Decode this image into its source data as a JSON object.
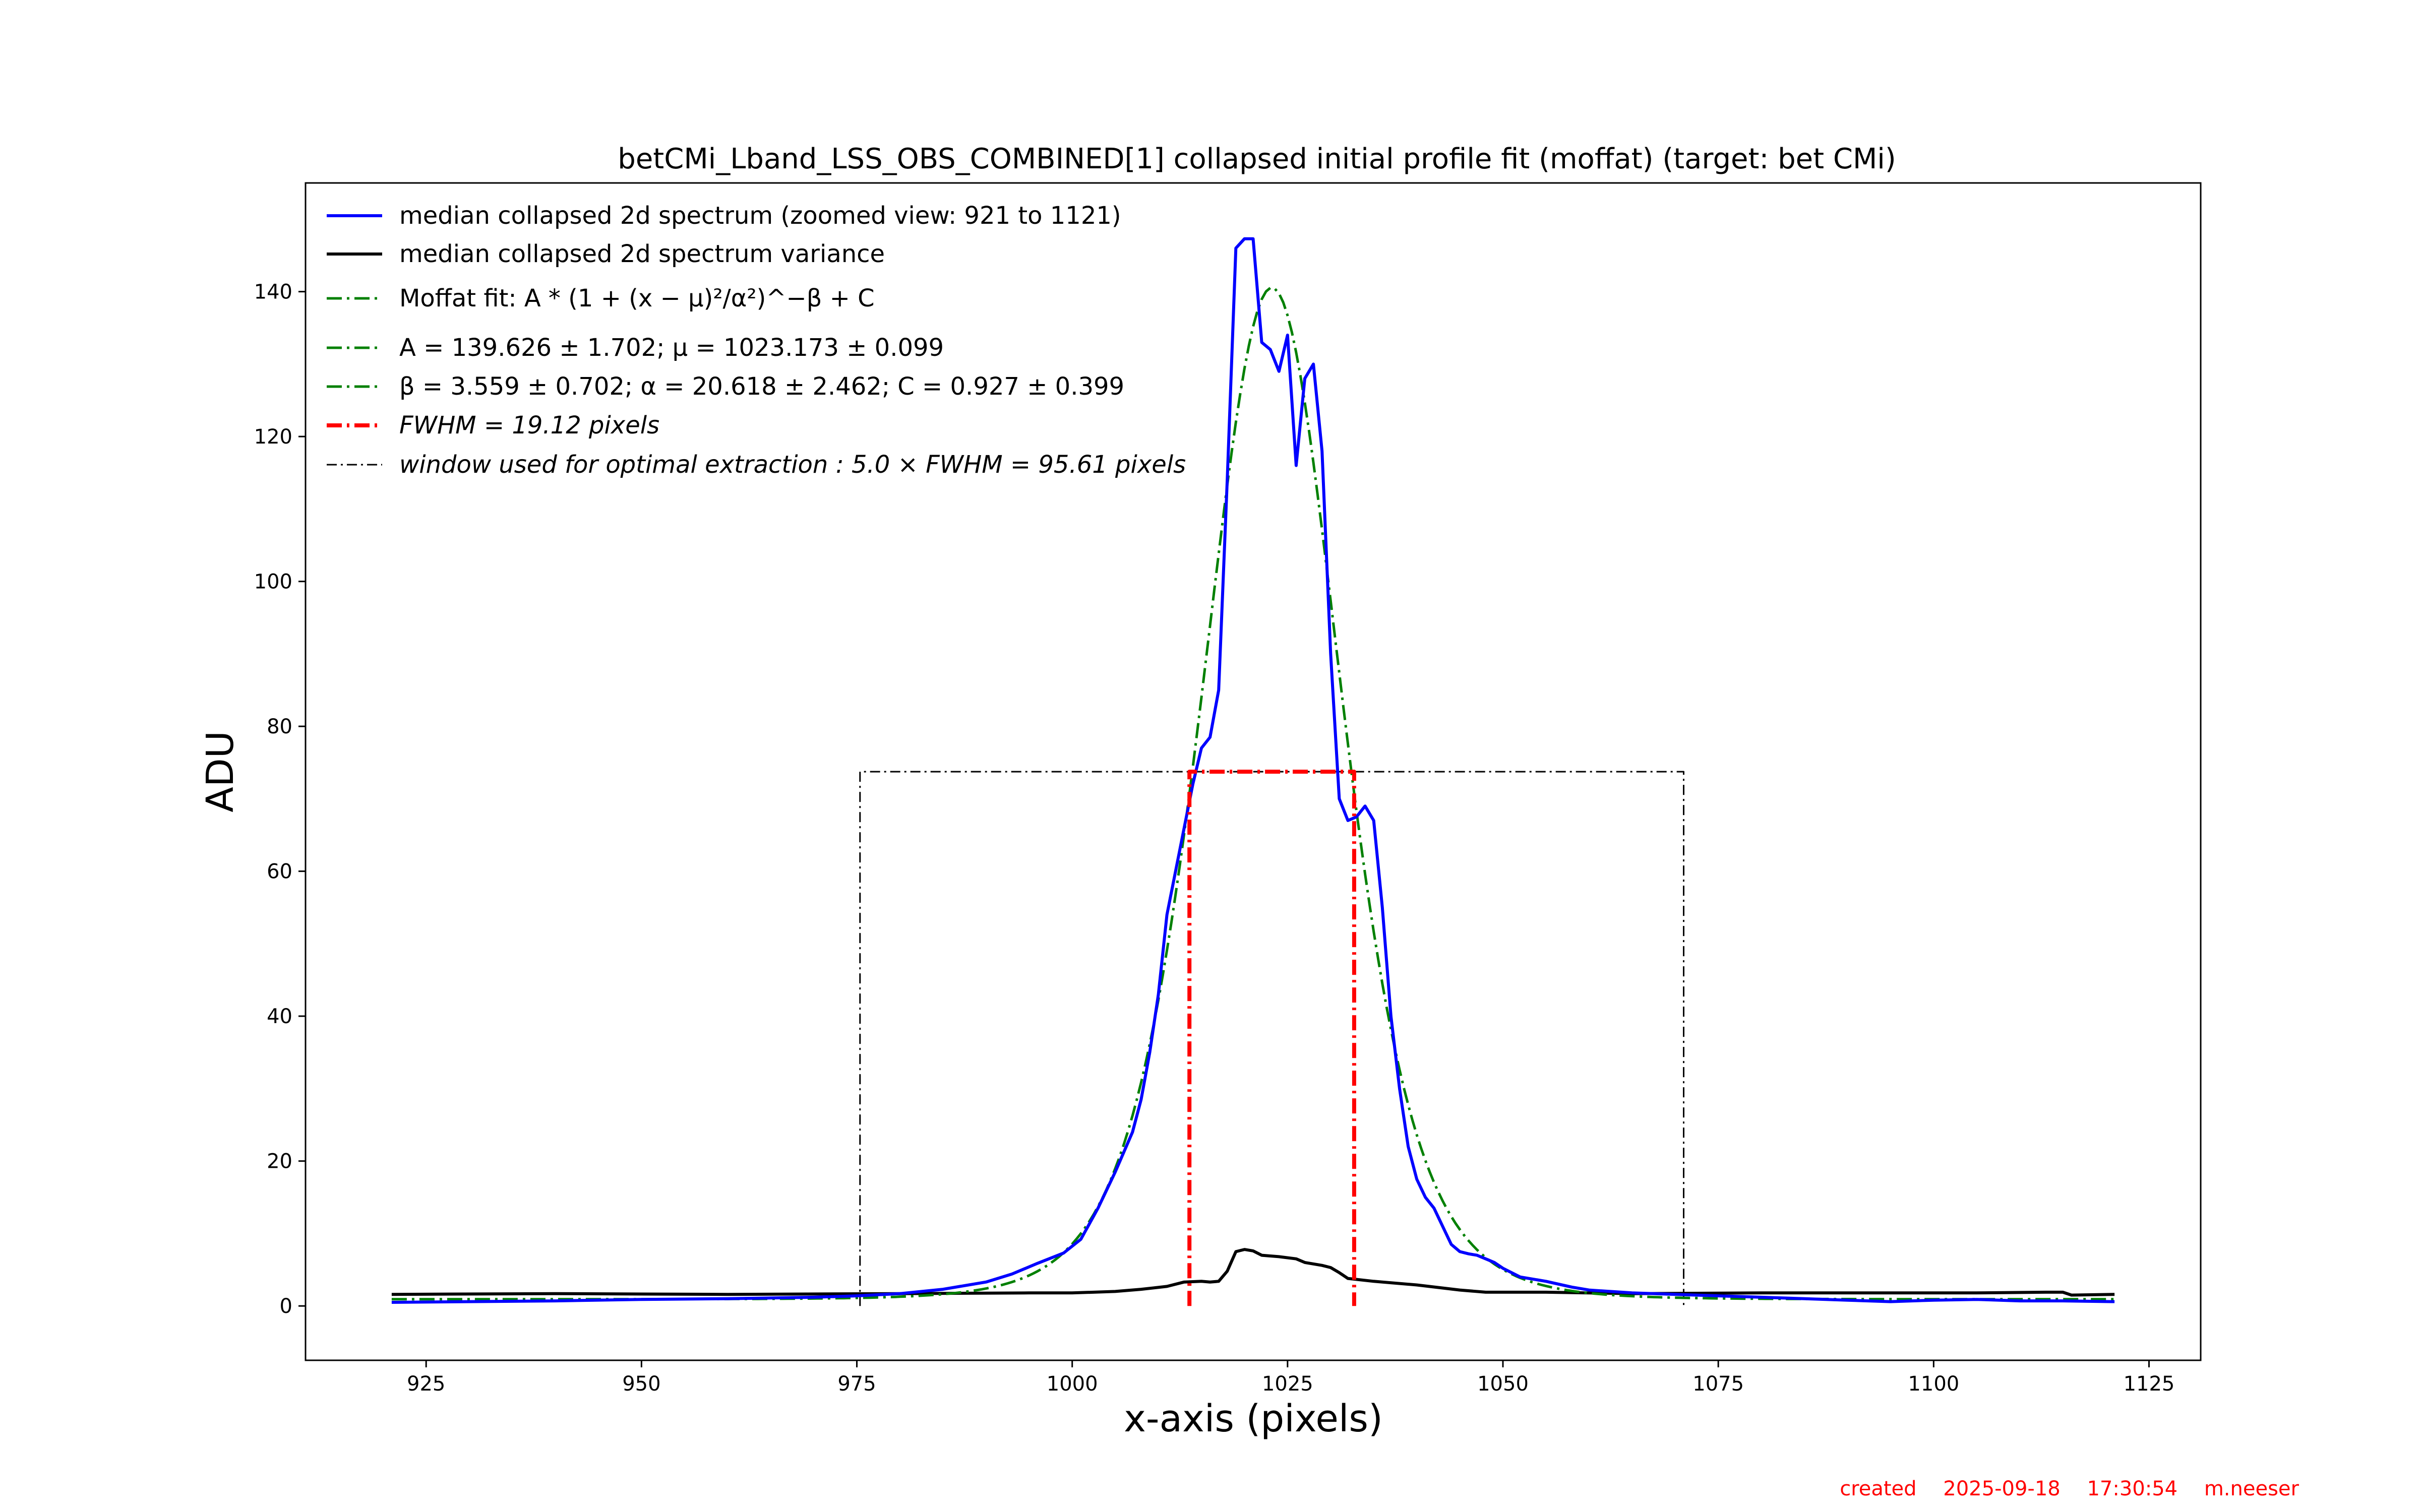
{
  "chart_data": {
    "type": "line",
    "title": "betCMi_Lband_LSS_OBS_COMBINED[1] collapsed initial profile fit (moffat) (target: bet CMi)",
    "xlabel": "x-axis (pixels)",
    "ylabel": "ADU",
    "xlim": [
      911,
      1131
    ],
    "ylim": [
      -7.5,
      155
    ],
    "xticks": [
      925,
      950,
      975,
      1000,
      1025,
      1050,
      1075,
      1100,
      1125
    ],
    "yticks": [
      0,
      20,
      40,
      60,
      80,
      100,
      120,
      140
    ],
    "grid": false,
    "legend_position": "upper-left",
    "legend": [
      "median collapsed 2d spectrum (zoomed view: 921 to 1121)",
      "median collapsed 2d spectrum variance",
      "Moffat fit: A * (1 + (x − μ)²/α²)^−β + C",
      "A = 139.626 ± 1.702; μ = 1023.173 ± 0.099",
      "β = 3.559 ± 0.702; α = 20.618 ± 2.462; C = 0.927 ± 0.399",
      "FWHM = 19.12 pixels",
      "window used for optimal extraction :  5.0 × FWHM = 95.61 pixels"
    ],
    "series": [
      {
        "name": "median collapsed 2d spectrum (zoomed view: 921 to 1121)",
        "color": "#0000ff",
        "style": "solid",
        "x": [
          921,
          930,
          940,
          950,
          960,
          970,
          975,
          980,
          985,
          990,
          993,
          996,
          999,
          1001,
          1003,
          1005,
          1007,
          1008,
          1009,
          1010,
          1011,
          1012,
          1013,
          1014,
          1015,
          1016,
          1017,
          1018,
          1019,
          1020,
          1021,
          1022,
          1023,
          1024,
          1025,
          1026,
          1027,
          1028,
          1029,
          1030,
          1031,
          1032,
          1033,
          1034,
          1035,
          1036,
          1037,
          1038,
          1039,
          1040,
          1041,
          1042,
          1043,
          1044,
          1045,
          1046,
          1047,
          1048,
          1049,
          1050,
          1052,
          1055,
          1058,
          1060,
          1065,
          1070,
          1075,
          1080,
          1085,
          1090,
          1095,
          1100,
          1105,
          1110,
          1115,
          1121
        ],
        "y": [
          0.5,
          0.6,
          0.7,
          0.9,
          1.0,
          1.2,
          1.4,
          1.7,
          2.3,
          3.3,
          4.4,
          5.9,
          7.3,
          9.2,
          13.5,
          18.5,
          24.0,
          28.5,
          35.0,
          43.0,
          54.0,
          60.0,
          66.0,
          72.0,
          77.0,
          78.5,
          85.0,
          114.0,
          146.0,
          147.3,
          147.3,
          133.0,
          132.0,
          129.0,
          134.0,
          116.0,
          128.0,
          130.0,
          118.0,
          90.0,
          70.0,
          67.0,
          67.5,
          69.0,
          67.0,
          55.0,
          40.0,
          30.0,
          22.0,
          17.5,
          15.0,
          13.5,
          11.0,
          8.5,
          7.5,
          7.2,
          7.0,
          6.5,
          6.0,
          5.2,
          4.0,
          3.4,
          2.6,
          2.2,
          1.8,
          1.6,
          1.4,
          1.2,
          1.0,
          0.8,
          0.6,
          0.8,
          0.9,
          0.7,
          0.7,
          0.6
        ]
      },
      {
        "name": "median collapsed 2d spectrum variance",
        "color": "#000000",
        "style": "solid",
        "x": [
          921,
          940,
          960,
          980,
          995,
          1000,
          1005,
          1008,
          1011,
          1013,
          1015,
          1016,
          1017,
          1018,
          1019,
          1020,
          1021,
          1022,
          1024,
          1026,
          1027,
          1029,
          1030,
          1031,
          1032,
          1035,
          1040,
          1045,
          1048,
          1055,
          1065,
          1080,
          1095,
          1105,
          1113,
          1115,
          1116,
          1121
        ],
        "y": [
          1.6,
          1.7,
          1.6,
          1.7,
          1.8,
          1.8,
          2.0,
          2.3,
          2.7,
          3.3,
          3.4,
          3.3,
          3.4,
          4.8,
          7.5,
          7.8,
          7.6,
          7.0,
          6.8,
          6.5,
          6.0,
          5.6,
          5.3,
          4.6,
          3.8,
          3.4,
          2.9,
          2.2,
          1.9,
          1.9,
          1.7,
          1.8,
          1.8,
          1.8,
          1.9,
          1.9,
          1.5,
          1.6
        ]
      },
      {
        "name": "Moffat fit",
        "color": "#008000",
        "style": "dashdot",
        "params": {
          "A": 139.626,
          "mu": 1023.173,
          "beta": 3.559,
          "alpha": 20.618,
          "C": 0.927
        },
        "x_range": [
          921,
          1121
        ]
      },
      {
        "name": "FWHM",
        "color": "#ff0000",
        "style": "dashdot",
        "x": [
          1013.61,
          1013.61,
          1032.73,
          1032.73
        ],
        "y": [
          0,
          73.74,
          73.74,
          0
        ]
      },
      {
        "name": "window used for optimal extraction",
        "color": "#000000",
        "style": "dashdot",
        "x": [
          975.37,
          975.37,
          1070.98,
          1070.98
        ],
        "y": [
          0,
          73.74,
          73.74,
          0
        ]
      }
    ]
  },
  "footer": {
    "created_label": "created",
    "date": "2025-09-18",
    "time": "17:30:54",
    "author": "m.neeser"
  }
}
